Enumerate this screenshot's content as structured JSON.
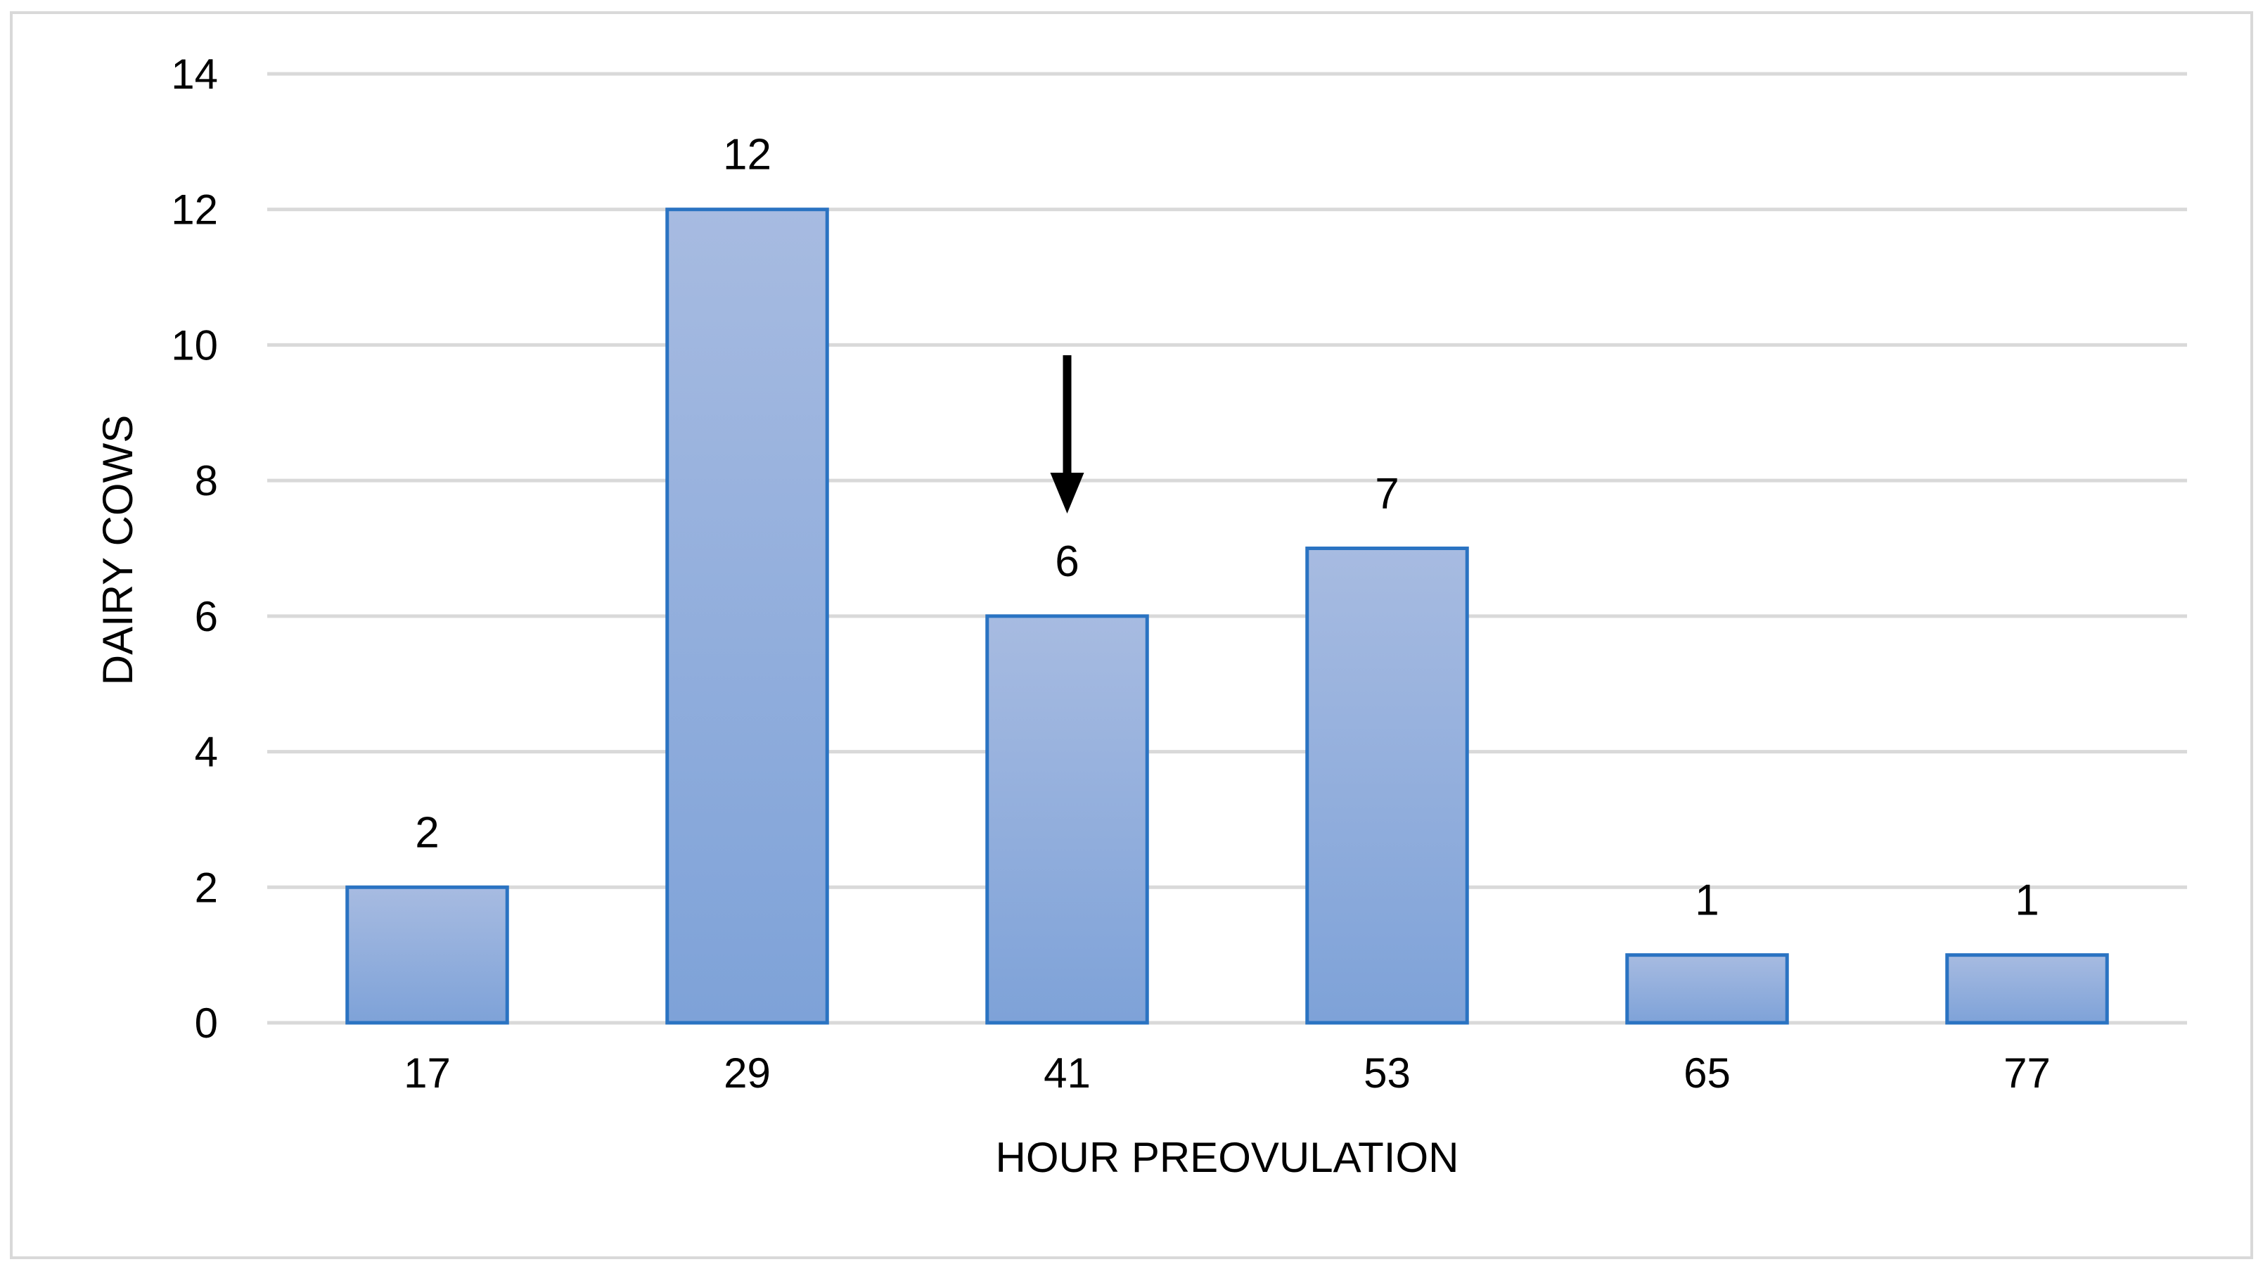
{
  "chart_data": {
    "type": "bar",
    "categories": [
      "17",
      "29",
      "41",
      "53",
      "65",
      "77"
    ],
    "values": [
      2,
      12,
      6,
      7,
      1,
      1
    ],
    "data_labels": [
      "2",
      "12",
      "6",
      "7",
      "1",
      "1"
    ],
    "title": "",
    "xlabel": "HOUR PREOVULATION",
    "ylabel": "DAIRY COWS",
    "ylim": [
      0,
      14
    ],
    "yticks": [
      0,
      2,
      4,
      6,
      8,
      10,
      12,
      14
    ],
    "grid": true,
    "legend": "none",
    "annotation": {
      "type": "arrow",
      "category": "41",
      "direction": "down"
    },
    "colors": {
      "bar_fill_top": "#a7bbe1",
      "bar_fill_bottom": "#7ea2d8",
      "bar_stroke": "#2a73c2",
      "grid": "#d9d9d9",
      "arrow": "#000000",
      "frame": "#d9d9d9"
    }
  }
}
